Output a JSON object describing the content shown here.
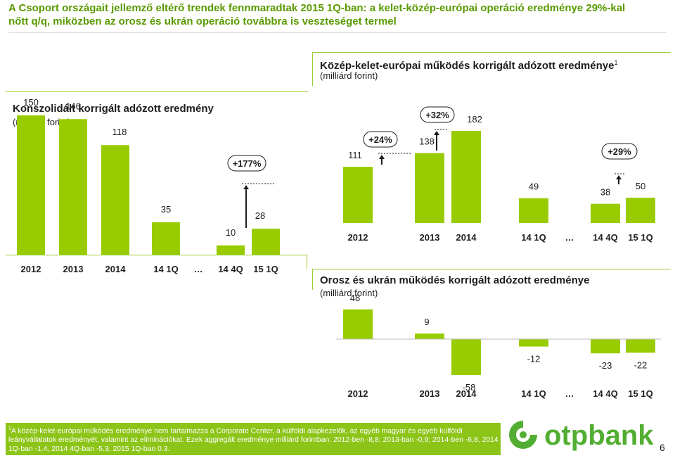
{
  "header": {
    "title": "A Csoport országait jellemző eltérő trendek fennmaradtak 2015 1Q-ban: a kelet-közép-európai operáció eredménye 29%-kal nőtt q/q, miközben az orosz és ukrán operáció továbbra is veszteséget termel"
  },
  "chart_data": [
    {
      "type": "bar",
      "title": "Konszolidált korrigált adózott eredmény",
      "subtitle": "(milliárd forint)",
      "categories": [
        "2012",
        "2013",
        "2014",
        "14 1Q",
        "…",
        "14 4Q",
        "15 1Q"
      ],
      "values": [
        150,
        146,
        118,
        35,
        null,
        10,
        28
      ],
      "data_labels": [
        "150",
        "146",
        "118",
        "35",
        "",
        "10",
        "28"
      ],
      "annotations": [
        "+177%"
      ],
      "color": "#99cc00"
    },
    {
      "type": "bar",
      "title": "Közép-kelet-európai működés korrigált adózott eredménye",
      "title_sup": "1",
      "subtitle": "(milliárd forint)",
      "categories": [
        "2012",
        "2013",
        "2014",
        "14 1Q",
        "…",
        "14 4Q",
        "15 1Q"
      ],
      "values": [
        111,
        138,
        182,
        49,
        null,
        38,
        50
      ],
      "data_labels": [
        "111",
        "138",
        "182",
        "49",
        "",
        "38",
        "50"
      ],
      "annotations": [
        "+24%",
        "+32%",
        "+29%"
      ],
      "color": "#99cc00"
    },
    {
      "type": "bar",
      "title": "Orosz és ukrán működés korrigált adózott eredménye",
      "subtitle": "(milliárd forint)",
      "categories": [
        "2012",
        "2013",
        "2014",
        "14 1Q",
        "…",
        "14 4Q",
        "15 1Q"
      ],
      "values": [
        48,
        9,
        -58,
        -12,
        null,
        -23,
        -22
      ],
      "data_labels": [
        "48",
        "9",
        "-58",
        "-12",
        "",
        "-23",
        "-22"
      ],
      "color": "#99cc00"
    }
  ],
  "footnote": {
    "sup": "1",
    "text": "A közép-kelet-európai működés eredménye nem tartalmazza a Corporate Center, a külföldi alapkezelők, az egyéb magyar és egyéb külföldi leányvállalatok eredményét, valamint az eliminációkat. Ezek aggregált eredménye milliárd forintban: 2012-ben -8,8; 2013-ban -0,9; 2014-ben -6,8, 2014 1Q-ban -1.4, 2014 4Q-ban -5.3, 2015 1Q-ban 0.3."
  },
  "logo": {
    "text": "otpbank"
  },
  "page_number": "6",
  "colors": {
    "accent": "#99cc00",
    "title": "#5a9a00",
    "footnote_bg": "#8cc418"
  }
}
